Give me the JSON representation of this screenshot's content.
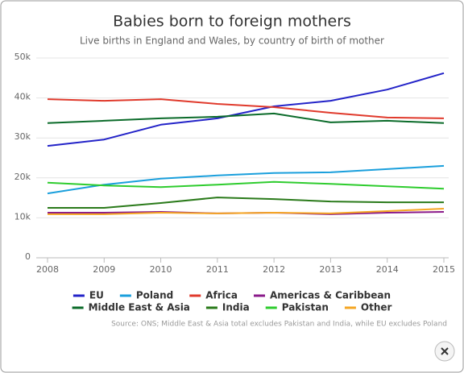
{
  "chart_data": {
    "type": "line",
    "title": "Babies born to foreign mothers",
    "subtitle": "Live births in England and Wales, by country of birth of mother",
    "source": "Source: ONS; Middle East & Asia total excludes Pakistan and India, while EU excludes Poland",
    "x": [
      2008,
      2009,
      2010,
      2011,
      2012,
      2013,
      2014,
      2015
    ],
    "xlim": [
      2008,
      2015
    ],
    "xticks": [
      2008,
      2009,
      2010,
      2011,
      2012,
      2013,
      2014,
      2015
    ],
    "ylim": [
      0,
      50000
    ],
    "yticks": [
      {
        "value": 0,
        "label": "0"
      },
      {
        "value": 10000,
        "label": "10k"
      },
      {
        "value": 20000,
        "label": "20k"
      },
      {
        "value": 30000,
        "label": "30k"
      },
      {
        "value": 40000,
        "label": "40k"
      },
      {
        "value": 50000,
        "label": "50k"
      }
    ],
    "grid": true,
    "series": [
      {
        "name": "EU",
        "color": "#2323c8",
        "values": [
          28000,
          29600,
          33300,
          34900,
          37900,
          39300,
          42100,
          46200
        ]
      },
      {
        "name": "Poland",
        "color": "#1a9fdc",
        "values": [
          16100,
          18300,
          19800,
          20600,
          21200,
          21400,
          22200,
          23000
        ]
      },
      {
        "name": "Africa",
        "color": "#e03a2c",
        "values": [
          39700,
          39300,
          39700,
          38500,
          37700,
          36300,
          35100,
          34900
        ]
      },
      {
        "name": "Americas & Caribbean",
        "color": "#8a1a8a",
        "values": [
          11300,
          11300,
          11500,
          11100,
          11300,
          10900,
          11300,
          11500
        ]
      },
      {
        "name": "Middle East & Asia",
        "color": "#0b6b2a",
        "values": [
          33700,
          34300,
          34900,
          35300,
          36100,
          33900,
          34300,
          33700
        ]
      },
      {
        "name": "India",
        "color": "#2a7a1a",
        "values": [
          12500,
          12500,
          13700,
          15100,
          14700,
          14100,
          13900,
          13900
        ]
      },
      {
        "name": "Pakistan",
        "color": "#2ecc2e",
        "values": [
          18800,
          18100,
          17700,
          18300,
          19000,
          18500,
          17900,
          17300
        ]
      },
      {
        "name": "Other",
        "color": "#f5a623",
        "values": [
          10900,
          10900,
          11300,
          11100,
          11300,
          11100,
          11700,
          12300
        ]
      }
    ]
  }
}
